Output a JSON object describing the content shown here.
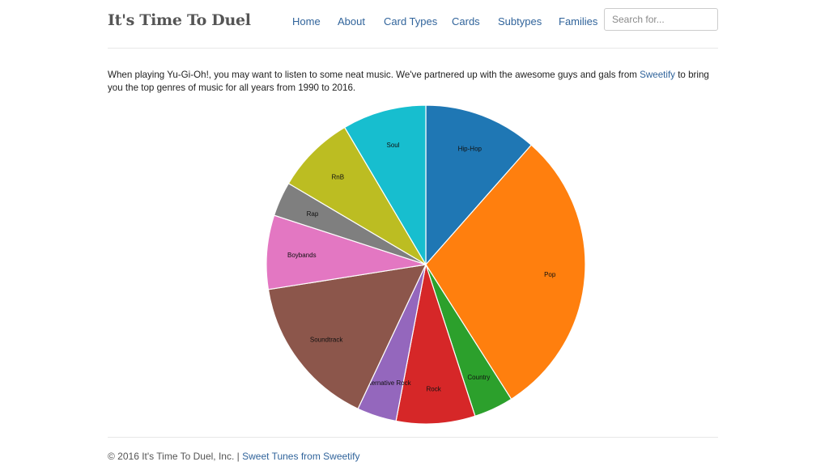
{
  "brand": "It's Time To Duel",
  "nav": {
    "items": [
      {
        "label": "Home"
      },
      {
        "label": "About"
      },
      {
        "label": "Card Types"
      },
      {
        "label": "Cards"
      },
      {
        "label": "Subtypes"
      },
      {
        "label": "Families"
      }
    ],
    "search_placeholder": "Search for..."
  },
  "intro": {
    "text_before": "When playing Yu-Gi-Oh!, you may want to listen to some neat music. We've partnered up with the awesome guys and gals from ",
    "link": "Sweetify",
    "text_after": " to bring you the top genres of music for all years from 1990 to 2016."
  },
  "chart_data": {
    "type": "pie",
    "start_angle_deg": 0,
    "direction": "clockwise",
    "slices": [
      {
        "label": "Hip-Hop",
        "value": 11.5,
        "color": "#1f77b4"
      },
      {
        "label": "Pop",
        "value": 29.5,
        "color": "#ff7f0e"
      },
      {
        "label": "Country",
        "value": 4,
        "color": "#2ca02c"
      },
      {
        "label": "Rock",
        "value": 8,
        "color": "#d62728"
      },
      {
        "label": "Alternative Rock",
        "value": 4,
        "color": "#9467bd"
      },
      {
        "label": "Soundtrack",
        "value": 15.5,
        "color": "#8c564b"
      },
      {
        "label": "Boybands",
        "value": 7.5,
        "color": "#e377c2"
      },
      {
        "label": "Rap",
        "value": 3.5,
        "color": "#7f7f7f"
      },
      {
        "label": "RnB",
        "value": 8,
        "color": "#bcbd22"
      },
      {
        "label": "Soul",
        "value": 8.5,
        "color": "#17becf"
      }
    ]
  },
  "footer": {
    "text": "© 2016 It's Time To Duel, Inc. | ",
    "link": "Sweet Tunes from Sweetify"
  }
}
